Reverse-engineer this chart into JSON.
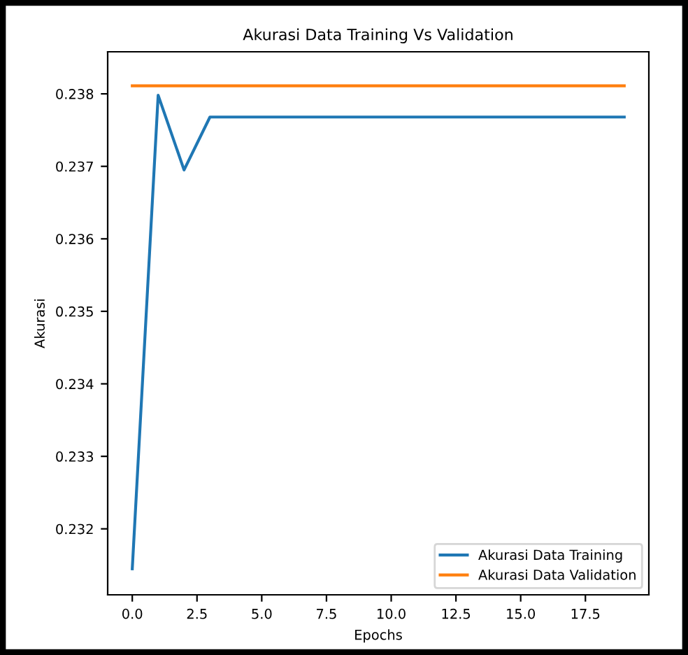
{
  "chart_data": {
    "type": "line",
    "title": "Akurasi Data Training Vs Validation",
    "xlabel": "Epochs",
    "ylabel": "Akurasi",
    "x": [
      0,
      1,
      2,
      3,
      4,
      5,
      6,
      7,
      8,
      9,
      10,
      11,
      12,
      13,
      14,
      15,
      16,
      17,
      18,
      19
    ],
    "series": [
      {
        "name": "Akurasi Data Training",
        "color": "#1f77b4",
        "values": [
          0.23145,
          0.23798,
          0.23695,
          0.23768,
          0.23768,
          0.23768,
          0.23768,
          0.23768,
          0.23768,
          0.23768,
          0.23768,
          0.23768,
          0.23768,
          0.23768,
          0.23768,
          0.23768,
          0.23768,
          0.23768,
          0.23768,
          0.23768
        ]
      },
      {
        "name": "Akurasi Data Validation",
        "color": "#ff7f0e",
        "values": [
          0.23811,
          0.23811,
          0.23811,
          0.23811,
          0.23811,
          0.23811,
          0.23811,
          0.23811,
          0.23811,
          0.23811,
          0.23811,
          0.23811,
          0.23811,
          0.23811,
          0.23811,
          0.23811,
          0.23811,
          0.23811,
          0.23811,
          0.23811
        ]
      }
    ],
    "xlim": [
      -0.95,
      19.95
    ],
    "xticks": [
      {
        "value": 0,
        "label": "0.0"
      },
      2.5,
      {
        "value": 5,
        "label": "5.0"
      },
      7.5,
      {
        "value": 10,
        "label": "10.0"
      },
      12.5,
      {
        "value": 15,
        "label": "15.0"
      },
      17.5
    ],
    "ylim": [
      0.23109,
      0.23858
    ],
    "yticks": [
      0.232,
      0.233,
      0.234,
      0.235,
      0.236,
      0.237,
      0.238
    ],
    "grid": false,
    "legend": "bottom right",
    "marker": "none",
    "line_style": "solid"
  }
}
